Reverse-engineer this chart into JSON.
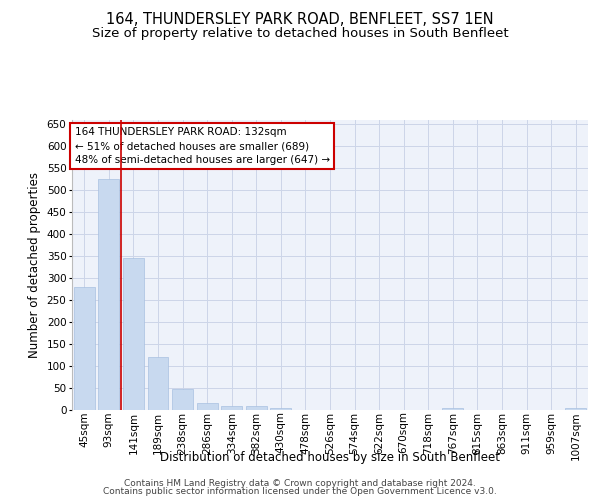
{
  "title1": "164, THUNDERSLEY PARK ROAD, BENFLEET, SS7 1EN",
  "title2": "Size of property relative to detached houses in South Benfleet",
  "xlabel": "Distribution of detached houses by size in South Benfleet",
  "ylabel": "Number of detached properties",
  "footer1": "Contains HM Land Registry data © Crown copyright and database right 2024.",
  "footer2": "Contains public sector information licensed under the Open Government Licence v3.0.",
  "annotation_line1": "164 THUNDERSLEY PARK ROAD: 132sqm",
  "annotation_line2": "← 51% of detached houses are smaller (689)",
  "annotation_line3": "48% of semi-detached houses are larger (647) →",
  "bar_color": "#c8d9ef",
  "bar_edge_color": "#a8c0e0",
  "redline_color": "#cc0000",
  "categories": [
    "45sqm",
    "93sqm",
    "141sqm",
    "189sqm",
    "238sqm",
    "286sqm",
    "334sqm",
    "382sqm",
    "430sqm",
    "478sqm",
    "526sqm",
    "574sqm",
    "622sqm",
    "670sqm",
    "718sqm",
    "767sqm",
    "815sqm",
    "863sqm",
    "911sqm",
    "959sqm",
    "1007sqm"
  ],
  "values": [
    280,
    525,
    345,
    120,
    47,
    16,
    10,
    8,
    5,
    0,
    0,
    0,
    0,
    0,
    0,
    5,
    0,
    0,
    0,
    0,
    5
  ],
  "ylim": [
    0,
    660
  ],
  "yticks": [
    0,
    50,
    100,
    150,
    200,
    250,
    300,
    350,
    400,
    450,
    500,
    550,
    600,
    650
  ],
  "grid_color": "#ccd5e8",
  "bg_color": "#eef2fa",
  "annotation_box_facecolor": "#ffffff",
  "annotation_box_edgecolor": "#cc0000",
  "title_fontsize": 10.5,
  "subtitle_fontsize": 9.5,
  "axis_label_fontsize": 8.5,
  "tick_fontsize": 7.5,
  "annotation_fontsize": 7.5,
  "footer_fontsize": 6.5
}
